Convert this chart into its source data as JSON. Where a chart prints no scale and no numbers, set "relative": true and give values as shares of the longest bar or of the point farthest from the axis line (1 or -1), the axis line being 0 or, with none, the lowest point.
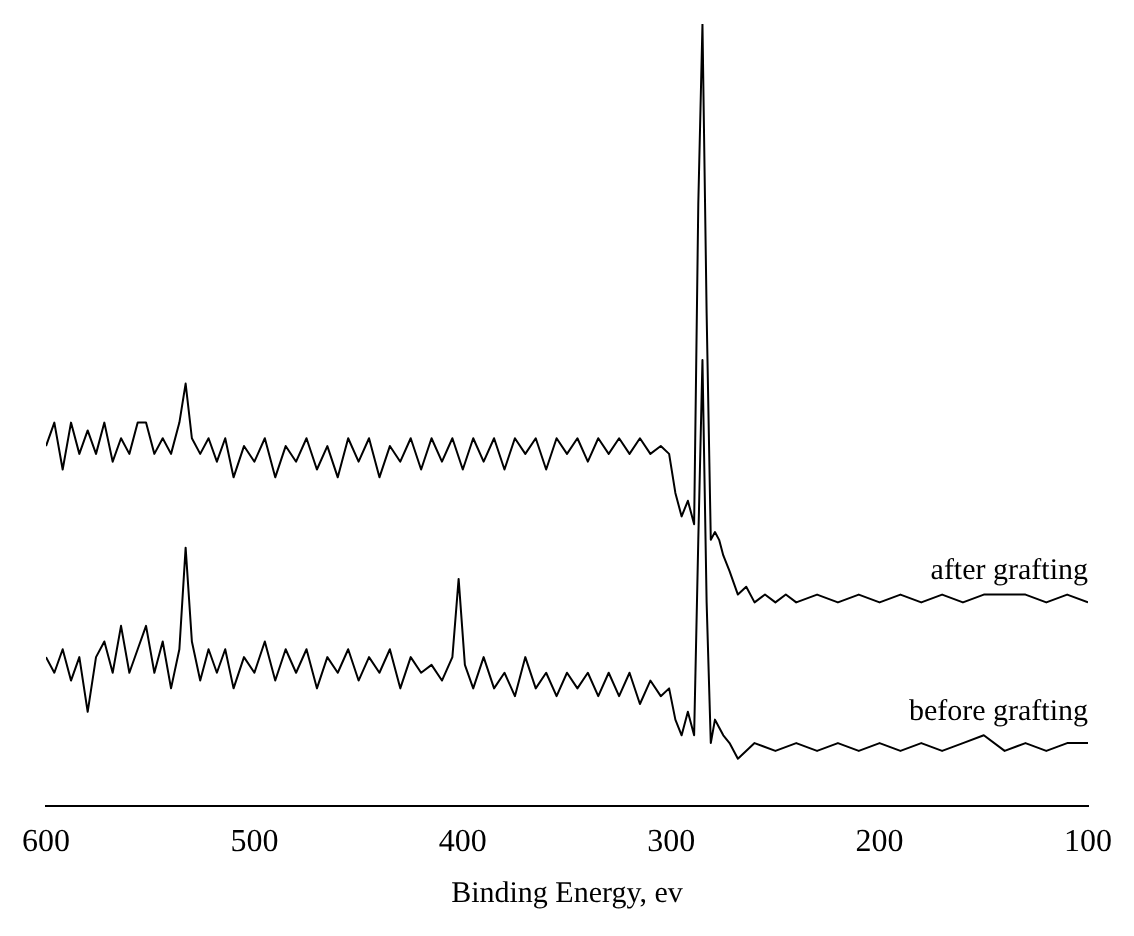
{
  "chart_data": {
    "type": "line",
    "relative": true,
    "xlabel": "Binding Energy, ev",
    "xlim": [
      600,
      100
    ],
    "xticks": [
      600,
      500,
      400,
      300,
      200,
      100
    ],
    "grid": false,
    "legend": false,
    "marker": "none",
    "line_style": "solid",
    "series": [
      {
        "name": "after grafting",
        "color": "#000000",
        "x": [
          600,
          596,
          592,
          588,
          584,
          580,
          576,
          572,
          568,
          564,
          560,
          556,
          552,
          548,
          544,
          540,
          536,
          533,
          530,
          526,
          522,
          518,
          514,
          510,
          505,
          500,
          495,
          490,
          485,
          480,
          475,
          470,
          465,
          460,
          455,
          450,
          445,
          440,
          435,
          430,
          425,
          420,
          415,
          410,
          405,
          400,
          395,
          390,
          385,
          380,
          375,
          370,
          365,
          360,
          355,
          350,
          345,
          340,
          335,
          330,
          325,
          320,
          315,
          310,
          305,
          301,
          298,
          295,
          292,
          289,
          287,
          285,
          283,
          281,
          279,
          277,
          275,
          272,
          268,
          264,
          260,
          255,
          250,
          245,
          240,
          230,
          220,
          210,
          200,
          190,
          180,
          170,
          160,
          150,
          140,
          130,
          120,
          110,
          100
        ],
        "values": [
          0.46,
          0.49,
          0.43,
          0.49,
          0.45,
          0.48,
          0.45,
          0.49,
          0.44,
          0.47,
          0.45,
          0.49,
          0.49,
          0.45,
          0.47,
          0.45,
          0.49,
          0.54,
          0.47,
          0.45,
          0.47,
          0.44,
          0.47,
          0.42,
          0.46,
          0.44,
          0.47,
          0.42,
          0.46,
          0.44,
          0.47,
          0.43,
          0.46,
          0.42,
          0.47,
          0.44,
          0.47,
          0.42,
          0.46,
          0.44,
          0.47,
          0.43,
          0.47,
          0.44,
          0.47,
          0.43,
          0.47,
          0.44,
          0.47,
          0.43,
          0.47,
          0.45,
          0.47,
          0.43,
          0.47,
          0.45,
          0.47,
          0.44,
          0.47,
          0.45,
          0.47,
          0.45,
          0.47,
          0.45,
          0.46,
          0.45,
          0.4,
          0.37,
          0.39,
          0.36,
          0.77,
          1,
          0.63,
          0.34,
          0.35,
          0.34,
          0.32,
          0.3,
          0.27,
          0.28,
          0.26,
          0.27,
          0.26,
          0.27,
          0.26,
          0.27,
          0.26,
          0.27,
          0.26,
          0.27,
          0.26,
          0.27,
          0.26,
          0.27,
          0.27,
          0.27,
          0.26,
          0.27,
          0.26
        ]
      },
      {
        "name": "before grafting",
        "color": "#000000",
        "x": [
          600,
          596,
          592,
          588,
          584,
          580,
          576,
          572,
          568,
          564,
          560,
          556,
          552,
          548,
          544,
          540,
          536,
          533,
          530,
          526,
          522,
          518,
          514,
          510,
          505,
          500,
          495,
          490,
          485,
          480,
          475,
          470,
          465,
          460,
          455,
          450,
          445,
          440,
          435,
          430,
          425,
          420,
          415,
          410,
          405,
          402,
          399,
          395,
          390,
          385,
          380,
          375,
          370,
          365,
          360,
          355,
          350,
          345,
          340,
          335,
          330,
          325,
          320,
          315,
          310,
          305,
          301,
          298,
          295,
          292,
          289,
          287,
          285,
          283,
          281,
          279,
          277,
          275,
          272,
          268,
          260,
          250,
          240,
          230,
          220,
          210,
          200,
          190,
          180,
          170,
          160,
          150,
          140,
          130,
          120,
          110,
          100
        ],
        "values": [
          0.19,
          0.17,
          0.2,
          0.16,
          0.19,
          0.12,
          0.19,
          0.21,
          0.17,
          0.23,
          0.17,
          0.2,
          0.23,
          0.17,
          0.21,
          0.15,
          0.2,
          0.33,
          0.21,
          0.16,
          0.2,
          0.17,
          0.2,
          0.15,
          0.19,
          0.17,
          0.21,
          0.16,
          0.2,
          0.17,
          0.2,
          0.15,
          0.19,
          0.17,
          0.2,
          0.16,
          0.19,
          0.17,
          0.2,
          0.15,
          0.19,
          0.17,
          0.18,
          0.16,
          0.19,
          0.29,
          0.18,
          0.15,
          0.19,
          0.15,
          0.17,
          0.14,
          0.19,
          0.15,
          0.17,
          0.14,
          0.17,
          0.15,
          0.17,
          0.14,
          0.17,
          0.14,
          0.17,
          0.13,
          0.16,
          0.14,
          0.15,
          0.11,
          0.09,
          0.12,
          0.09,
          0.34,
          0.57,
          0.26,
          0.08,
          0.11,
          0.1,
          0.09,
          0.08,
          0.06,
          0.08,
          0.07,
          0.08,
          0.07,
          0.08,
          0.07,
          0.08,
          0.07,
          0.08,
          0.07,
          0.08,
          0.09,
          0.07,
          0.08,
          0.07,
          0.08,
          0.08
        ]
      }
    ]
  }
}
